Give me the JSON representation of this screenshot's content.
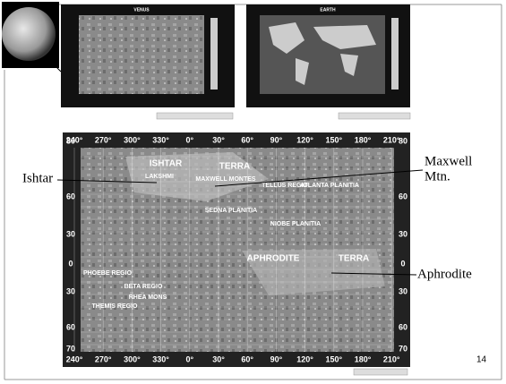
{
  "insets": {
    "left_title": "VENUS",
    "right_title": "EARTH"
  },
  "map": {
    "longitudes": [
      "240°",
      "270°",
      "300°",
      "330°",
      "0°",
      "30°",
      "60°",
      "90°",
      "120°",
      "150°",
      "180°",
      "210°"
    ],
    "latitudes": [
      "80",
      "60",
      "30",
      "0",
      "30",
      "60",
      "70"
    ],
    "features": [
      "ISHTAR",
      "LAKSHMI",
      "MAXWELL MONTES",
      "TERRA",
      "TELLUS REGIO",
      "ATLANTA PLANITIA",
      "SEDNA PLANITIA",
      "NIOBE PLANITIA",
      "BETA REGIO",
      "PHOEBE REGIO",
      "THEMIS REGIO",
      "APHRODITE",
      "TERRA",
      "RHEA MONS"
    ]
  },
  "annotations": {
    "ishtar": "Ishtar",
    "maxwell_line1": "Maxwell",
    "maxwell_line2": "Mtn.",
    "aphrodite": "Aphrodite"
  },
  "page_number": "14"
}
